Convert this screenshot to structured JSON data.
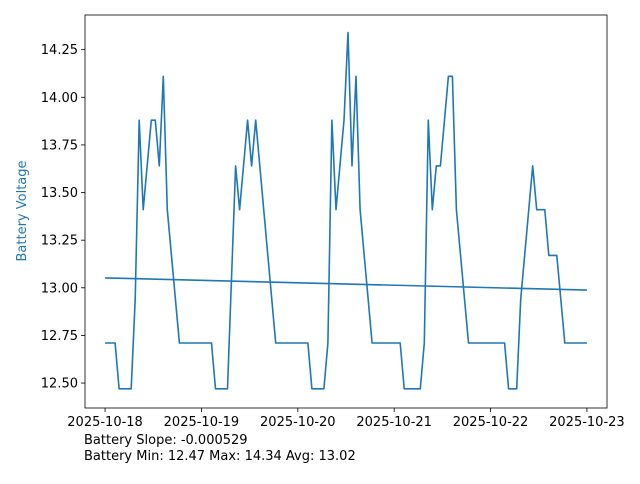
{
  "chart_data": {
    "type": "line",
    "title": "",
    "xlabel": "",
    "ylabel": "Battery Voltage",
    "ylabel_color": "#1f77b4",
    "line_color": "#1f77b4",
    "xlim": [
      "2025-10-17 19:00",
      "2025-10-23 05:00"
    ],
    "ylim": [
      12.369,
      14.432
    ],
    "grid": false,
    "x_ticks": [
      "2025-10-18",
      "2025-10-19",
      "2025-10-20",
      "2025-10-21",
      "2025-10-22",
      "2025-10-23"
    ],
    "y_ticks": [
      "12.50",
      "12.75",
      "13.00",
      "13.25",
      "13.50",
      "13.75",
      "14.00",
      "14.25"
    ],
    "series": [
      {
        "x": [
          "2025-10-18 00:00",
          "2025-10-18 02:30",
          "2025-10-18 03:30",
          "2025-10-18 06:30",
          "2025-10-18 07:30",
          "2025-10-18 08:30",
          "2025-10-18 09:30",
          "2025-10-18 11:30",
          "2025-10-18 12:30",
          "2025-10-18 13:30",
          "2025-10-18 14:30",
          "2025-10-18 15:30",
          "2025-10-18 18:30",
          "2025-10-19 02:30",
          "2025-10-19 03:30",
          "2025-10-19 06:30",
          "2025-10-19 08:30",
          "2025-10-19 09:30",
          "2025-10-19 11:30",
          "2025-10-19 12:30",
          "2025-10-19 13:30",
          "2025-10-19 18:30",
          "2025-10-20 02:30",
          "2025-10-20 03:30",
          "2025-10-20 06:30",
          "2025-10-20 07:30",
          "2025-10-20 08:30",
          "2025-10-20 09:30",
          "2025-10-20 11:30",
          "2025-10-20 12:30",
          "2025-10-20 13:30",
          "2025-10-20 14:30",
          "2025-10-20 15:30",
          "2025-10-20 18:30",
          "2025-10-21 01:30",
          "2025-10-21 02:30",
          "2025-10-21 06:30",
          "2025-10-21 07:30",
          "2025-10-21 08:30",
          "2025-10-21 09:30",
          "2025-10-21 10:30",
          "2025-10-21 11:30",
          "2025-10-21 13:30",
          "2025-10-21 14:30",
          "2025-10-21 15:30",
          "2025-10-21 18:30",
          "2025-10-22 03:30",
          "2025-10-22 04:30",
          "2025-10-22 06:30",
          "2025-10-22 07:30",
          "2025-10-22 10:30",
          "2025-10-22 11:30",
          "2025-10-22 13:30",
          "2025-10-22 14:30",
          "2025-10-22 16:30",
          "2025-10-22 18:30",
          "2025-10-23 00:00"
        ],
        "y": [
          12.71,
          12.71,
          12.47,
          12.47,
          12.94,
          13.88,
          13.41,
          13.88,
          13.88,
          13.64,
          14.11,
          13.41,
          12.71,
          12.71,
          12.47,
          12.47,
          13.64,
          13.41,
          13.88,
          13.64,
          13.88,
          12.71,
          12.71,
          12.47,
          12.47,
          12.71,
          13.88,
          13.41,
          13.88,
          14.34,
          13.64,
          14.11,
          13.41,
          12.71,
          12.71,
          12.47,
          12.47,
          12.71,
          13.88,
          13.41,
          13.64,
          13.64,
          14.11,
          14.11,
          13.41,
          12.71,
          12.71,
          12.47,
          12.47,
          12.94,
          13.64,
          13.41,
          13.41,
          13.17,
          13.17,
          12.71,
          12.71
        ]
      },
      {
        "x": [
          "2025-10-18 00:00",
          "2025-10-23 00:00"
        ],
        "y": [
          13.052,
          12.988
        ]
      }
    ],
    "annotations": [
      "Battery Slope: -0.000529",
      "Battery Min: 12.47 Max: 14.34 Avg: 13.02"
    ]
  }
}
